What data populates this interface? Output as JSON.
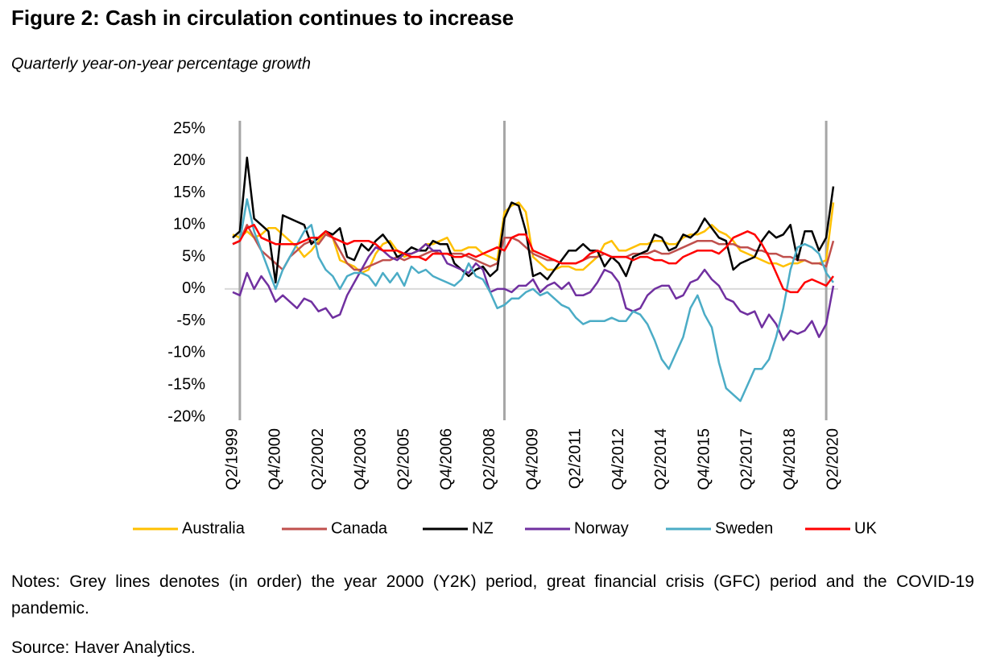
{
  "chart_data": {
    "type": "line",
    "title": "Figure 2: Cash in circulation continues to increase",
    "subtitle": "Quarterly year-on-year percentage growth",
    "categories": [
      "Q2/1999",
      null,
      null,
      null,
      null,
      null,
      "Q4/2000",
      null,
      null,
      null,
      null,
      null,
      "Q2/2002",
      null,
      null,
      null,
      null,
      null,
      "Q4/2003",
      null,
      null,
      null,
      null,
      null,
      "Q2/2005",
      null,
      null,
      null,
      null,
      null,
      "Q4/2006",
      null,
      null,
      null,
      null,
      null,
      "Q2/2008",
      null,
      null,
      null,
      null,
      null,
      "Q4/2009",
      null,
      null,
      null,
      null,
      null,
      "Q2/2011",
      null,
      null,
      null,
      null,
      null,
      "Q4/2012",
      null,
      null,
      null,
      null,
      null,
      "Q2/2014",
      null,
      null,
      null,
      null,
      null,
      "Q4/2015",
      null,
      null,
      null,
      null,
      null,
      "Q2/2017",
      null,
      null,
      null,
      null,
      null,
      "Q4/2018",
      null,
      null,
      null,
      null,
      null,
      "Q2/2020"
    ],
    "ylim": [
      -20,
      25
    ],
    "yticks": [
      {
        "value": 25,
        "label": "25%"
      },
      {
        "value": 20,
        "label": "20%"
      },
      {
        "value": 15,
        "label": "15%"
      },
      {
        "value": 10,
        "label": "10%"
      },
      {
        "value": 5,
        "label": "5%"
      },
      {
        "value": 0,
        "label": "0%"
      },
      {
        "value": -5,
        "label": "-5%"
      },
      {
        "value": -10,
        "label": "-10%"
      },
      {
        "value": -15,
        "label": "-15%"
      },
      {
        "value": -20,
        "label": "-20%"
      }
    ],
    "reference_lines": [
      1,
      38,
      83
    ],
    "reference_line_color": "#a6a6a6",
    "legend": "bottom",
    "series": [
      {
        "name": "Australia",
        "color": "#FFC000",
        "values": [
          8.5,
          8,
          9,
          8,
          8.5,
          9.5,
          9.5,
          8.5,
          7.5,
          6.5,
          5,
          6,
          7.5,
          9,
          8,
          4.5,
          4,
          3.5,
          2.5,
          3,
          5.5,
          7,
          7.5,
          6,
          5,
          5.5,
          6,
          7,
          7,
          7.5,
          8,
          6,
          6,
          6.5,
          6.5,
          5.5,
          5,
          4.5,
          12,
          13,
          13.5,
          12,
          5,
          4,
          3,
          3,
          3.5,
          3.5,
          3,
          3,
          4,
          5,
          7,
          7.5,
          6,
          6,
          6.5,
          7,
          7,
          7.5,
          7.5,
          7,
          7,
          8,
          8.5,
          8.5,
          9,
          10,
          9,
          8.5,
          7.5,
          6,
          5.5,
          5,
          4.5,
          4,
          4,
          3.5,
          4,
          4,
          4.5,
          4,
          4,
          4.5,
          13.5
        ]
      },
      {
        "name": "Canada",
        "color": "#C0504D",
        "values": [
          7,
          7.5,
          10,
          8,
          6,
          5,
          4,
          3,
          5,
          6,
          7,
          7.5,
          7,
          8.5,
          8,
          6,
          4,
          3,
          3,
          3.5,
          4,
          4.5,
          4.5,
          5,
          4.5,
          5,
          5,
          5.5,
          6,
          5.5,
          5.5,
          5.5,
          5.5,
          5,
          4.5,
          4,
          3.5,
          4,
          8,
          8,
          7.5,
          6.5,
          5.5,
          5,
          4.5,
          4.5,
          4,
          4,
          4,
          4.5,
          5,
          5,
          5.5,
          5,
          5,
          5,
          5.5,
          5.5,
          5.5,
          6,
          5.5,
          5.5,
          6,
          6.5,
          7,
          7.5,
          7.5,
          7.5,
          7,
          7,
          7,
          6.5,
          6.5,
          6,
          6,
          5.5,
          5.5,
          5,
          5,
          4.5,
          4.5,
          4,
          4,
          3.5,
          7.5
        ]
      },
      {
        "name": "NZ",
        "color": "#000000",
        "values": [
          8,
          9,
          20.5,
          11,
          10,
          9,
          1,
          11.5,
          11,
          10.5,
          10,
          7,
          8,
          9,
          8.5,
          9.5,
          5,
          4.5,
          7,
          6,
          7.5,
          8.5,
          7,
          5,
          5.5,
          6.5,
          6,
          6,
          7.5,
          7,
          7,
          4,
          3,
          2,
          3,
          3.5,
          2,
          3,
          11,
          13.5,
          13,
          9,
          2,
          2.5,
          1.5,
          3,
          4.5,
          6,
          6,
          7,
          6,
          6,
          3.5,
          5,
          4,
          2,
          5,
          5.5,
          6,
          8.5,
          8,
          6,
          6.5,
          8.5,
          8,
          9,
          11,
          9.5,
          8,
          7.5,
          3,
          4,
          4.5,
          5,
          7.5,
          9,
          8,
          8.5,
          10,
          4.5,
          9,
          9,
          6,
          8,
          16
        ]
      },
      {
        "name": "Norway",
        "color": "#7030A0",
        "values": [
          -0.5,
          -1,
          2.5,
          0,
          2,
          0.5,
          -2,
          -1,
          -2,
          -3,
          -1.5,
          -2,
          -3.5,
          -3,
          -4.5,
          -4,
          -1,
          1,
          3,
          5,
          6.5,
          6,
          5,
          4.5,
          5.5,
          5.5,
          6,
          7,
          6,
          6,
          4,
          3.5,
          3,
          2.5,
          4,
          3,
          -0.5,
          0,
          0,
          -0.5,
          0.5,
          0.5,
          1.5,
          -0.5,
          0.5,
          1,
          0,
          1,
          -1,
          -1,
          -0.5,
          1,
          3,
          2.5,
          1,
          -3,
          -3.5,
          -3,
          -1,
          0,
          0.5,
          0.5,
          -1.5,
          -1,
          1,
          1.5,
          3,
          1.5,
          0.5,
          -1.5,
          -2,
          -3.5,
          -4,
          -3.5,
          -6,
          -4,
          -5.5,
          -8,
          -6.5,
          -7,
          -6.5,
          -5,
          -7.5,
          -5.5,
          0.5
        ]
      },
      {
        "name": "Sweden",
        "color": "#4BACC6",
        "values": [
          7,
          7.5,
          14,
          9,
          6,
          3,
          0,
          3,
          5,
          7,
          9,
          10,
          5,
          3,
          2,
          0,
          2,
          2.5,
          2.5,
          2,
          0.5,
          2.5,
          1,
          2.5,
          0.5,
          3.5,
          2.5,
          3,
          2,
          1.5,
          1,
          0.5,
          1.5,
          4,
          2,
          1.5,
          -0.5,
          -3,
          -2.5,
          -1.5,
          -1.5,
          -0.5,
          0,
          -1,
          -0.5,
          -1.5,
          -2.5,
          -3,
          -4.5,
          -5.5,
          -5,
          -5,
          -5,
          -4.5,
          -5,
          -5,
          -3.5,
          -4,
          -5.5,
          -8,
          -11,
          -12.5,
          -10,
          -7.5,
          -3,
          -1,
          -4,
          -6,
          -11.5,
          -15.5,
          -16.5,
          -17.5,
          -15,
          -12.5,
          -12.5,
          -11,
          -7.5,
          -3,
          3,
          6.5,
          7,
          6.5,
          5.5,
          2.5,
          1
        ]
      },
      {
        "name": "UK",
        "color": "#FF0000",
        "values": [
          7,
          7.5,
          9.5,
          10,
          8,
          7.5,
          7,
          7,
          7,
          7,
          7.5,
          8,
          8,
          9,
          8,
          7.5,
          7,
          7.5,
          7.5,
          7.5,
          7,
          6,
          6,
          6,
          5.5,
          5,
          5,
          4.5,
          5.5,
          5.5,
          5.5,
          5,
          5,
          5.5,
          5,
          5.5,
          6,
          6.5,
          6,
          8,
          8.5,
          8.5,
          6,
          5.5,
          5,
          4.5,
          4,
          4,
          4,
          4.5,
          5.5,
          6,
          5.5,
          5,
          5,
          5,
          4.5,
          5,
          5,
          4.5,
          4.5,
          4,
          4,
          5,
          5.5,
          6,
          6,
          6,
          5.5,
          6.5,
          8,
          8.5,
          9,
          8.5,
          7,
          5,
          2.5,
          0,
          -0.5,
          -0.5,
          1,
          1.5,
          1,
          0.5,
          2
        ]
      }
    ],
    "notes": "Notes: Grey lines denotes (in order) the year 2000 (Y2K) period, great financial crisis (GFC) period and the COVID-19 pandemic.",
    "source": "Source: Haver Analytics."
  }
}
